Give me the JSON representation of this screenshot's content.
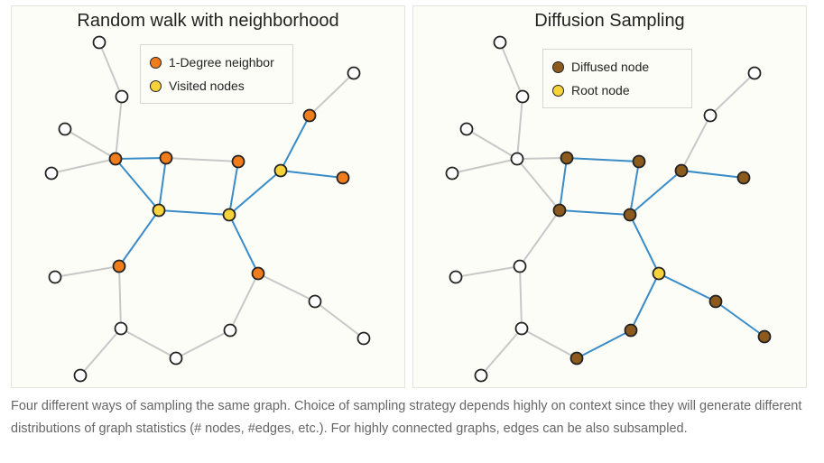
{
  "diagram": {
    "colors": {
      "edge": "#c8c8c8",
      "path": "#3a8cc8",
      "outline": "#222222",
      "empty": "#ffffff",
      "neighbor": "#f07c1c",
      "visited": "#f8d23a",
      "diffused": "#8c5a1c",
      "root": "#f8d23a"
    },
    "panels": [
      {
        "id": "left",
        "title": "Random walk with neighborhood",
        "legend": [
          {
            "label": "1-Degree neighbor",
            "color": "#f07c1c"
          },
          {
            "label": "Visited nodes",
            "color": "#f8d23a"
          }
        ],
        "nodes": [
          {
            "id": "n1",
            "kind": "empty"
          },
          {
            "id": "n2",
            "kind": "empty"
          },
          {
            "id": "n3",
            "kind": "empty"
          },
          {
            "id": "n4",
            "kind": "empty"
          },
          {
            "id": "n5",
            "kind": "neighbor"
          },
          {
            "id": "n6",
            "kind": "neighbor"
          },
          {
            "id": "n7",
            "kind": "neighbor"
          },
          {
            "id": "n8",
            "kind": "visited"
          },
          {
            "id": "n9",
            "kind": "visited"
          },
          {
            "id": "n10",
            "kind": "neighbor"
          },
          {
            "id": "n11",
            "kind": "empty"
          },
          {
            "id": "n12",
            "kind": "neighbor"
          },
          {
            "id": "n13",
            "kind": "neighbor"
          },
          {
            "id": "n14",
            "kind": "visited"
          },
          {
            "id": "n15",
            "kind": "empty"
          },
          {
            "id": "n16",
            "kind": "neighbor"
          },
          {
            "id": "n17",
            "kind": "empty"
          },
          {
            "id": "n18",
            "kind": "empty"
          },
          {
            "id": "n19",
            "kind": "empty"
          },
          {
            "id": "n20",
            "kind": "empty"
          },
          {
            "id": "n21",
            "kind": "empty"
          },
          {
            "id": "n22",
            "kind": "empty"
          }
        ],
        "edges": [
          [
            "n1",
            "n2",
            "plain"
          ],
          [
            "n2",
            "n5",
            "plain"
          ],
          [
            "n3",
            "n5",
            "plain"
          ],
          [
            "n4",
            "n5",
            "plain"
          ],
          [
            "n5",
            "n6",
            "path"
          ],
          [
            "n5",
            "n8",
            "path"
          ],
          [
            "n6",
            "n8",
            "path"
          ],
          [
            "n8",
            "n9",
            "path"
          ],
          [
            "n7",
            "n9",
            "path"
          ],
          [
            "n6",
            "n7",
            "plain"
          ],
          [
            "n9",
            "n14",
            "path"
          ],
          [
            "n14",
            "n12",
            "path"
          ],
          [
            "n14",
            "n13",
            "path"
          ],
          [
            "n12",
            "n11",
            "plain"
          ],
          [
            "n8",
            "n10",
            "path"
          ],
          [
            "n9",
            "n16",
            "path"
          ],
          [
            "n10",
            "n15",
            "plain"
          ],
          [
            "n10",
            "n17",
            "plain"
          ],
          [
            "n17",
            "n19",
            "plain"
          ],
          [
            "n19",
            "n20",
            "plain"
          ],
          [
            "n20",
            "n16",
            "plain"
          ],
          [
            "n16",
            "n21",
            "plain"
          ],
          [
            "n21",
            "n22",
            "plain"
          ],
          [
            "n17",
            "n18",
            "plain"
          ]
        ]
      },
      {
        "id": "right",
        "title": "Diffusion Sampling",
        "legend": [
          {
            "label": "Diffused node",
            "color": "#8c5a1c"
          },
          {
            "label": "Root node",
            "color": "#f8d23a"
          }
        ],
        "nodes": [
          {
            "id": "m1",
            "kind": "empty"
          },
          {
            "id": "m2",
            "kind": "empty"
          },
          {
            "id": "m3",
            "kind": "empty"
          },
          {
            "id": "m4",
            "kind": "empty"
          },
          {
            "id": "m5",
            "kind": "empty"
          },
          {
            "id": "m6",
            "kind": "diffused"
          },
          {
            "id": "m7",
            "kind": "diffused"
          },
          {
            "id": "m8",
            "kind": "diffused"
          },
          {
            "id": "m9",
            "kind": "diffused"
          },
          {
            "id": "m10",
            "kind": "empty"
          },
          {
            "id": "m11",
            "kind": "empty"
          },
          {
            "id": "m12",
            "kind": "empty"
          },
          {
            "id": "m13",
            "kind": "diffused"
          },
          {
            "id": "m14",
            "kind": "diffused"
          },
          {
            "id": "m15",
            "kind": "empty"
          },
          {
            "id": "m16",
            "kind": "root"
          },
          {
            "id": "m17",
            "kind": "empty"
          },
          {
            "id": "m18",
            "kind": "empty"
          },
          {
            "id": "m19",
            "kind": "diffused"
          },
          {
            "id": "m20",
            "kind": "diffused"
          },
          {
            "id": "m21",
            "kind": "diffused"
          },
          {
            "id": "m22",
            "kind": "diffused"
          }
        ],
        "edges": [
          [
            "m1",
            "m2",
            "plain"
          ],
          [
            "m2",
            "m5",
            "plain"
          ],
          [
            "m3",
            "m5",
            "plain"
          ],
          [
            "m4",
            "m5",
            "plain"
          ],
          [
            "m5",
            "m6",
            "plain"
          ],
          [
            "m5",
            "m8",
            "plain"
          ],
          [
            "m6",
            "m7",
            "path"
          ],
          [
            "m6",
            "m8",
            "path"
          ],
          [
            "m8",
            "m9",
            "path"
          ],
          [
            "m7",
            "m9",
            "path"
          ],
          [
            "m9",
            "m14",
            "path"
          ],
          [
            "m14",
            "m13",
            "path"
          ],
          [
            "m14",
            "m12",
            "plain"
          ],
          [
            "m12",
            "m11",
            "plain"
          ],
          [
            "m8",
            "m10",
            "plain"
          ],
          [
            "m9",
            "m16",
            "path"
          ],
          [
            "m10",
            "m15",
            "plain"
          ],
          [
            "m10",
            "m17",
            "plain"
          ],
          [
            "m17",
            "m18",
            "plain"
          ],
          [
            "m17",
            "m19",
            "plain"
          ],
          [
            "m19",
            "m20",
            "path"
          ],
          [
            "m20",
            "m16",
            "path"
          ],
          [
            "m16",
            "m21",
            "path"
          ],
          [
            "m21",
            "m22",
            "path"
          ]
        ]
      }
    ]
  },
  "caption": "Four different ways of sampling the same graph. Choice of sampling strategy depends highly on context since they will generate different distributions of graph statistics (# nodes, #edges, etc.). For highly connected graphs, edges can be also subsampled."
}
